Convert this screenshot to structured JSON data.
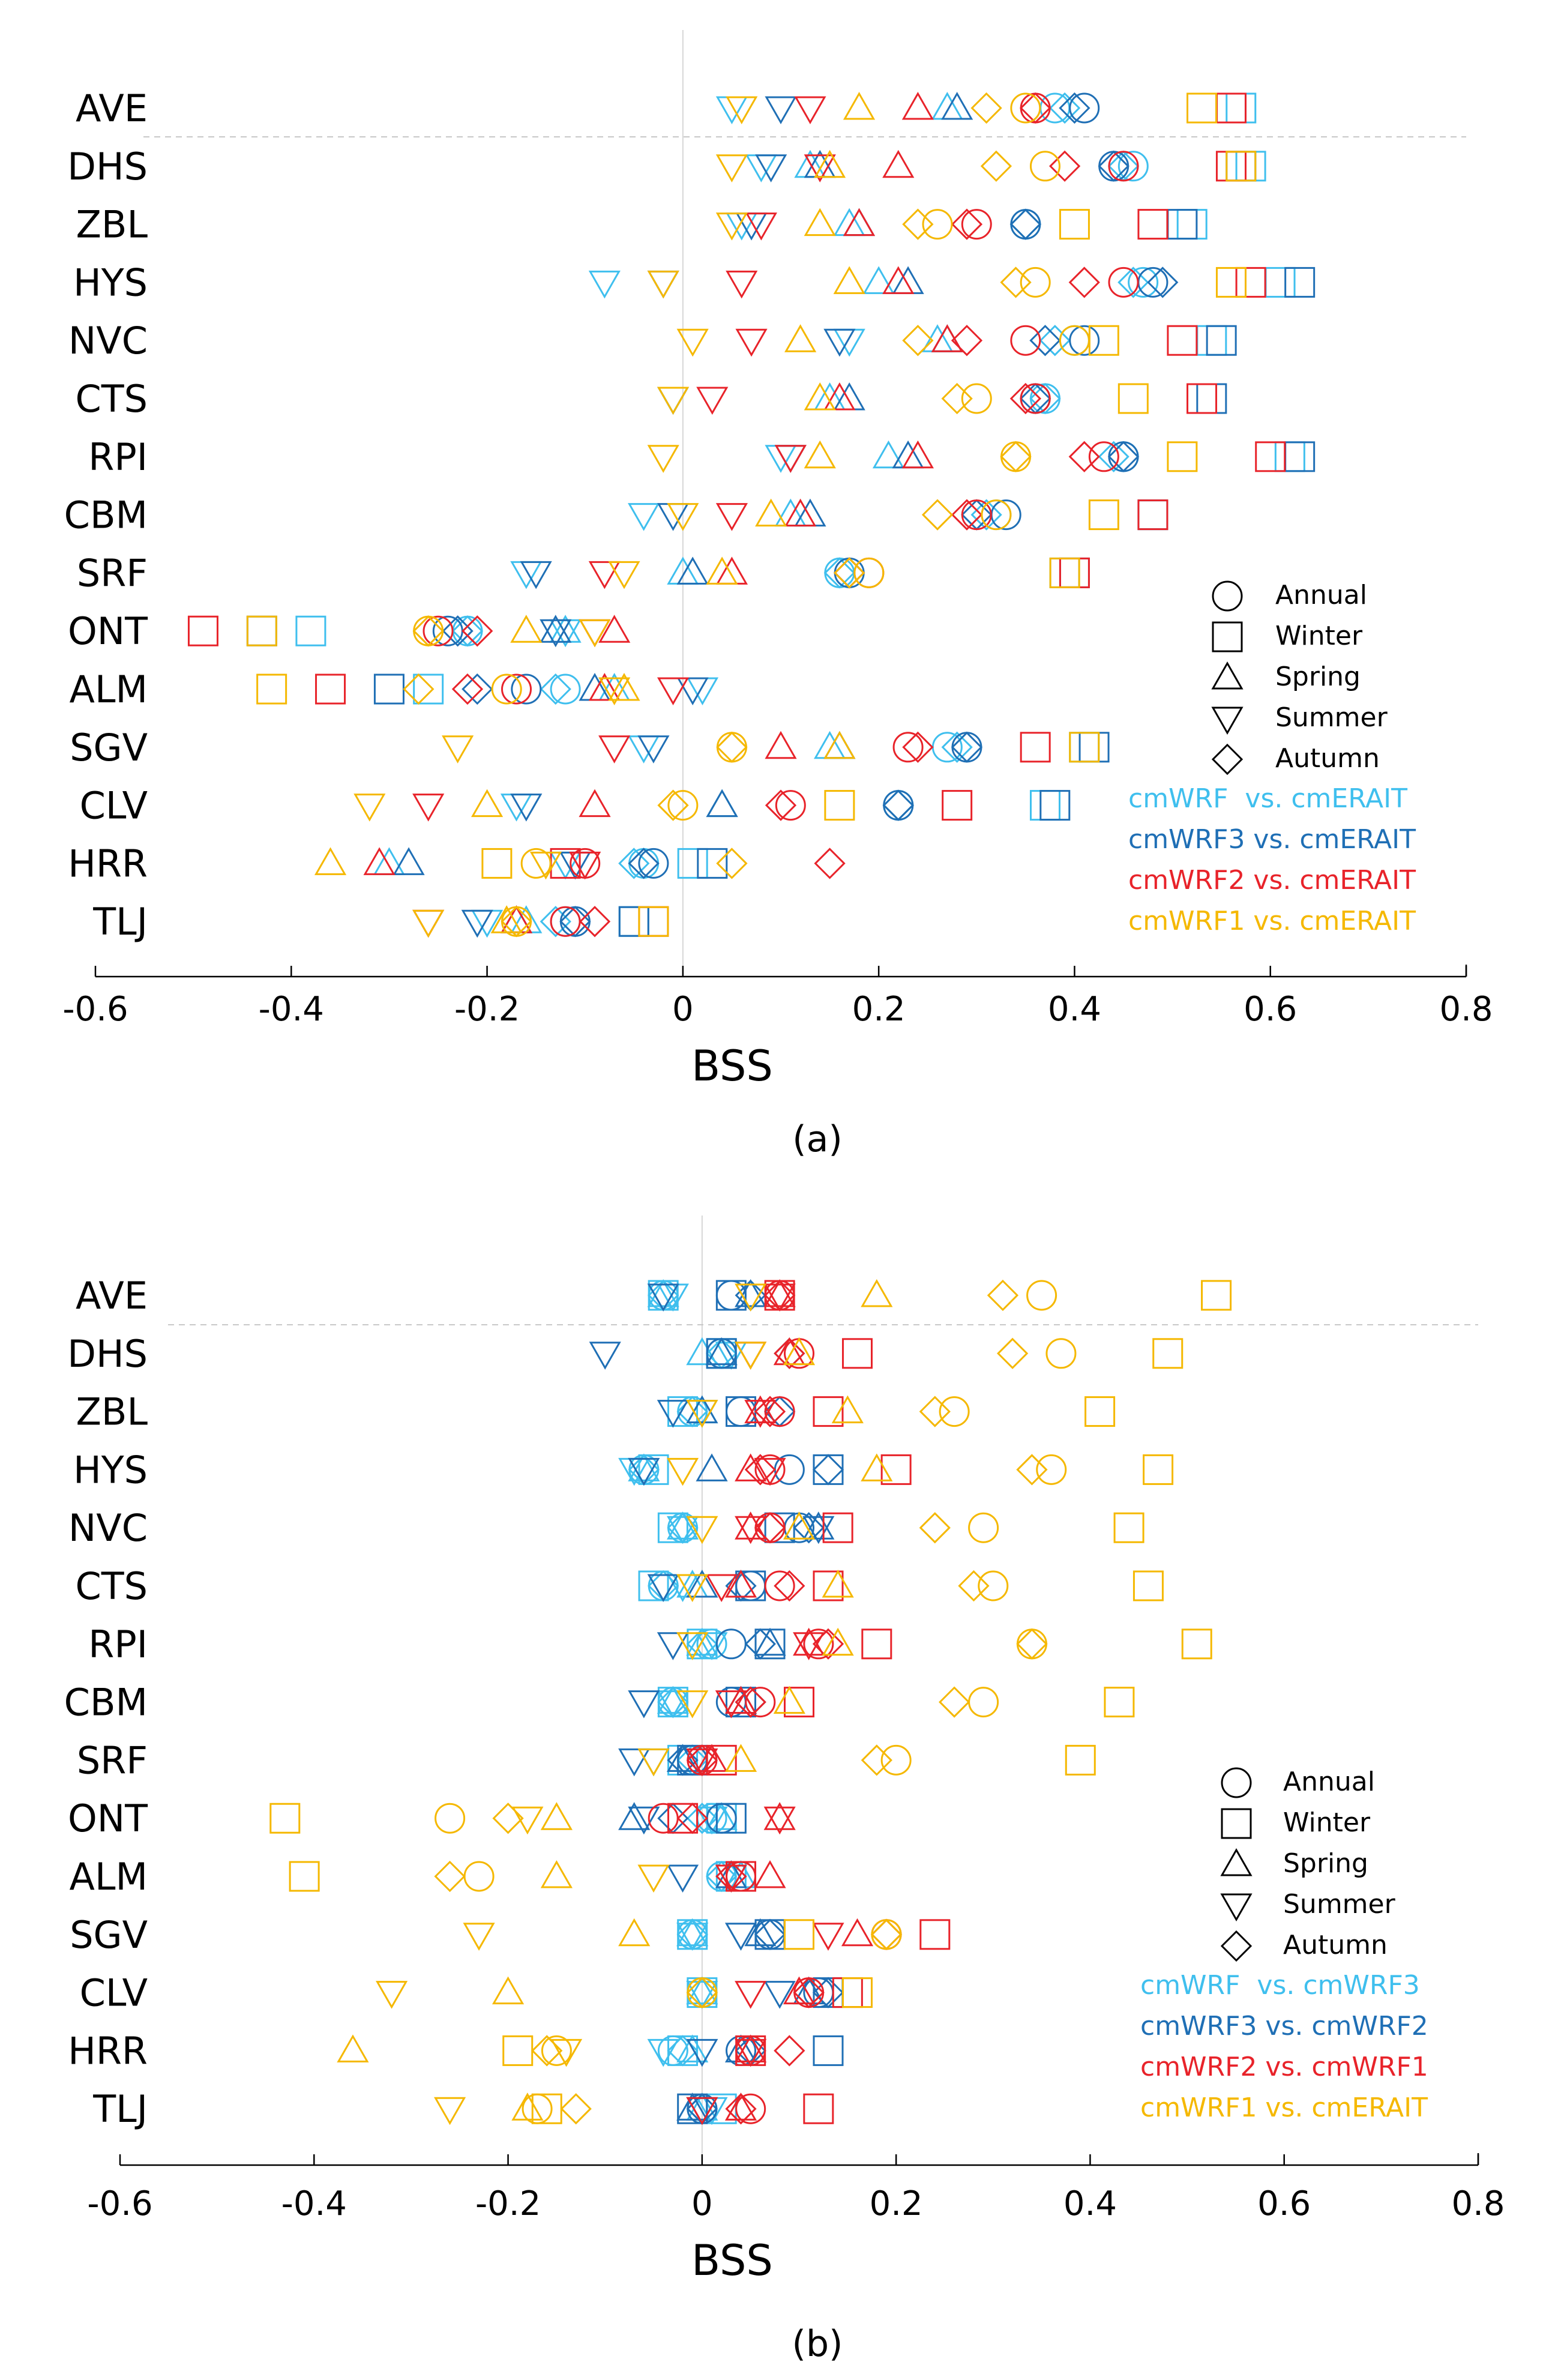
{
  "figure": {
    "panels": [
      {
        "id": "a",
        "caption": "(a)",
        "xlabel": "BSS",
        "xticks": [
          "-0.6",
          "-0.4",
          "-0.2",
          "0",
          "0.2",
          "0.4",
          "0.6",
          "0.8"
        ],
        "legend_shapes": [
          "Annual",
          "Winter",
          "Spring",
          "Summer",
          "Autumn"
        ],
        "legend_series": [
          "cmWRF  vs. cmERAIT",
          "cmWRF3 vs. cmERAIT",
          "cmWRF2 vs. cmERAIT",
          "cmWRF1 vs. cmERAIT"
        ]
      },
      {
        "id": "b",
        "caption": "(b)",
        "xlabel": "BSS",
        "xticks": [
          "-0.6",
          "-0.4",
          "-0.2",
          "0",
          "0.2",
          "0.4",
          "0.6",
          "0.8"
        ],
        "legend_shapes": [
          "Annual",
          "Winter",
          "Spring",
          "Summer",
          "Autumn"
        ],
        "legend_series": [
          "cmWRF  vs. cmWRF3",
          "cmWRF3 vs. cmWRF2",
          "cmWRF2 vs. cmWRF1",
          "cmWRF1 vs. cmERAIT"
        ]
      }
    ]
  },
  "chart_data": [
    {
      "type": "scatter",
      "title": "(a)",
      "xlabel": "BSS",
      "ylabel": "",
      "xlim": [
        -0.6,
        0.8
      ],
      "grid": false,
      "legend_position": "right",
      "categories": [
        "AVE",
        "DHS",
        "ZBL",
        "HYS",
        "NVC",
        "CTS",
        "RPI",
        "CBM",
        "SRF",
        "ONT",
        "ALM",
        "SGV",
        "CLV",
        "HRR",
        "TLJ"
      ],
      "markers": {
        "Annual": "circle",
        "Winter": "square",
        "Spring": "triangle-up",
        "Summer": "triangle-down",
        "Autumn": "diamond"
      },
      "series": [
        {
          "name": "cmWRF  vs. cmERAIT",
          "color": "#3fbfee",
          "values": {
            "Annual": [
              0.38,
              0.46,
              0.35,
              0.47,
              0.4,
              0.37,
              0.45,
              0.32,
              0.16,
              -0.22,
              -0.12,
              0.27,
              0.22,
              -0.04,
              -0.12
            ],
            "Winter": [
              0.57,
              0.58,
              0.52,
              0.61,
              0.54,
              0.53,
              0.62,
              0.48,
              0.39,
              -0.38,
              -0.26,
              0.41,
              0.37,
              0.01,
              -0.05
            ],
            "Spring": [
              0.27,
              0.13,
              0.17,
              0.2,
              0.26,
              0.15,
              0.21,
              0.11,
              0.0,
              -0.12,
              -0.07,
              0.15,
              0.04,
              -0.3,
              -0.16
            ],
            "Summer": [
              0.05,
              0.08,
              0.06,
              -0.08,
              0.17,
              -0.01,
              0.1,
              -0.04,
              -0.16,
              -0.12,
              0.02,
              -0.04,
              -0.17,
              -0.12,
              -0.2
            ],
            "Autumn": [
              0.39,
              0.45,
              0.35,
              0.46,
              0.38,
              0.37,
              0.44,
              0.31,
              0.16,
              -0.22,
              -0.13,
              0.28,
              0.22,
              -0.05,
              -0.13
            ]
          }
        },
        {
          "name": "cmWRF3 vs. cmERAIT",
          "color": "#1f6fb5",
          "values": {
            "Annual": [
              0.41,
              0.44,
              0.35,
              0.48,
              0.41,
              0.36,
              0.45,
              0.33,
              0.17,
              -0.24,
              -0.16,
              0.29,
              0.22,
              -0.03,
              -0.11
            ],
            "Winter": [
              0.56,
              0.57,
              0.51,
              0.63,
              0.55,
              0.54,
              0.63,
              0.48,
              0.4,
              -0.43,
              -0.3,
              0.42,
              0.38,
              0.03,
              -0.05
            ],
            "Spring": [
              0.28,
              0.14,
              0.18,
              0.23,
              0.27,
              0.17,
              0.23,
              0.13,
              0.01,
              -0.13,
              -0.09,
              0.16,
              0.04,
              -0.28,
              -0.17
            ],
            "Summer": [
              0.1,
              0.09,
              0.07,
              -0.02,
              0.16,
              -0.01,
              0.11,
              -0.01,
              -0.15,
              -0.13,
              0.01,
              -0.03,
              -0.16,
              -0.11,
              -0.21
            ],
            "Autumn": [
              0.4,
              0.44,
              0.35,
              0.49,
              0.37,
              0.36,
              0.45,
              0.3,
              0.17,
              -0.23,
              -0.21,
              0.29,
              0.22,
              -0.04,
              -0.11
            ]
          }
        },
        {
          "name": "cmWRF2 vs. cmERAIT",
          "color": "#e8232a",
          "values": {
            "Annual": [
              0.36,
              0.45,
              0.3,
              0.45,
              0.35,
              0.36,
              0.43,
              0.3,
              0.19,
              -0.25,
              -0.17,
              0.23,
              0.11,
              -0.1,
              -0.12
            ],
            "Winter": [
              0.56,
              0.56,
              0.48,
              0.58,
              0.51,
              0.53,
              0.6,
              0.48,
              0.4,
              -0.49,
              -0.36,
              0.36,
              0.28,
              -0.12,
              -0.03
            ],
            "Spring": [
              0.24,
              0.22,
              0.18,
              0.22,
              0.27,
              0.16,
              0.24,
              0.12,
              0.05,
              -0.07,
              -0.08,
              0.1,
              -0.09,
              -0.31,
              -0.17
            ],
            "Summer": [
              0.13,
              0.14,
              0.08,
              0.06,
              0.07,
              0.03,
              0.11,
              0.05,
              -0.08,
              -0.09,
              -0.01,
              -0.07,
              -0.26,
              -0.1,
              -0.26
            ],
            "Autumn": [
              0.36,
              0.39,
              0.29,
              0.41,
              0.29,
              0.35,
              0.41,
              0.29,
              0.17,
              -0.21,
              -0.22,
              0.24,
              0.1,
              0.15,
              -0.09
            ]
          }
        },
        {
          "name": "cmWRF1 vs. cmERAIT",
          "color": "#f5b800",
          "values": {
            "Annual": [
              0.35,
              0.37,
              0.26,
              0.36,
              0.4,
              0.3,
              0.34,
              0.32,
              0.19,
              -0.26,
              -0.18,
              0.05,
              0.0,
              -0.15,
              -0.17
            ],
            "Winter": [
              0.53,
              0.57,
              0.4,
              0.56,
              0.43,
              0.46,
              0.51,
              0.43,
              0.39,
              -0.43,
              -0.42,
              0.41,
              0.16,
              -0.19,
              -0.03
            ],
            "Spring": [
              0.18,
              0.15,
              0.14,
              0.17,
              0.12,
              0.14,
              0.14,
              0.09,
              0.04,
              -0.16,
              -0.06,
              0.16,
              -0.2,
              -0.36,
              -0.18
            ],
            "Summer": [
              0.06,
              0.05,
              0.05,
              -0.02,
              0.01,
              -0.01,
              -0.02,
              0.0,
              -0.06,
              -0.09,
              -0.07,
              -0.23,
              -0.32,
              -0.14,
              -0.26
            ],
            "Autumn": [
              0.31,
              0.32,
              0.24,
              0.34,
              0.24,
              0.28,
              0.34,
              0.26,
              0.17,
              -0.26,
              -0.27,
              0.05,
              -0.01,
              0.05,
              -0.17
            ]
          }
        }
      ]
    },
    {
      "type": "scatter",
      "title": "(b)",
      "xlabel": "BSS",
      "ylabel": "",
      "xlim": [
        -0.6,
        0.8
      ],
      "grid": false,
      "legend_position": "right",
      "categories": [
        "AVE",
        "DHS",
        "ZBL",
        "HYS",
        "NVC",
        "CTS",
        "RPI",
        "CBM",
        "SRF",
        "ONT",
        "ALM",
        "SGV",
        "CLV",
        "HRR",
        "TLJ"
      ],
      "markers": {
        "Annual": "circle",
        "Winter": "square",
        "Spring": "triangle-up",
        "Summer": "triangle-down",
        "Autumn": "diamond"
      },
      "series": [
        {
          "name": "cmWRF  vs. cmWRF3",
          "color": "#3fbfee",
          "values": {
            "Annual": [
              -0.04,
              0.02,
              -0.01,
              -0.06,
              -0.02,
              -0.04,
              0.01,
              -0.03,
              -0.01,
              0.01,
              0.02,
              -0.01,
              0.0,
              -0.03,
              0.0
            ],
            "Winter": [
              -0.04,
              0.02,
              -0.02,
              -0.05,
              -0.03,
              -0.05,
              0.0,
              -0.03,
              -0.02,
              0.02,
              0.03,
              -0.01,
              0.0,
              -0.02,
              0.02
            ],
            "Spring": [
              -0.04,
              0.0,
              0.0,
              -0.06,
              -0.02,
              -0.01,
              0.0,
              -0.03,
              -0.02,
              0.02,
              0.04,
              -0.01,
              0.0,
              -0.01,
              0.0
            ],
            "Summer": [
              -0.03,
              0.03,
              0.0,
              -0.07,
              -0.02,
              -0.02,
              0.01,
              -0.03,
              -0.05,
              0.01,
              0.03,
              -0.01,
              0.0,
              -0.04,
              0.01
            ],
            "Autumn": [
              -0.04,
              0.02,
              -0.01,
              -0.06,
              -0.02,
              -0.04,
              0.0,
              -0.03,
              -0.01,
              0.0,
              0.02,
              -0.01,
              0.0,
              -0.02,
              0.0
            ]
          }
        },
        {
          "name": "cmWRF3 vs. cmWRF2",
          "color": "#1f6fb5",
          "values": {
            "Annual": [
              0.03,
              0.02,
              0.04,
              0.09,
              0.1,
              0.05,
              0.03,
              0.03,
              -0.01,
              0.02,
              0.04,
              0.07,
              0.12,
              0.04,
              0.0
            ],
            "Winter": [
              0.03,
              0.02,
              0.04,
              0.13,
              0.08,
              0.05,
              0.07,
              0.04,
              -0.01,
              0.03,
              0.04,
              0.07,
              0.13,
              0.13,
              -0.01
            ],
            "Spring": [
              0.05,
              0.02,
              0.0,
              0.01,
              0.12,
              0.0,
              0.07,
              0.04,
              -0.02,
              -0.07,
              0.03,
              0.06,
              0.11,
              0.04,
              -0.01
            ],
            "Summer": [
              -0.04,
              -0.1,
              -0.03,
              -0.06,
              0.12,
              -0.04,
              -0.03,
              -0.06,
              -0.07,
              -0.06,
              -0.02,
              0.04,
              0.08,
              0.0,
              0.0
            ],
            "Autumn": [
              0.05,
              0.09,
              0.08,
              0.13,
              0.11,
              0.04,
              0.06,
              0.05,
              -0.02,
              -0.03,
              0.03,
              0.07,
              0.13,
              0.05,
              0.0
            ]
          }
        },
        {
          "name": "cmWRF2 vs. cmWRF1",
          "color": "#e8232a",
          "values": {
            "Annual": [
              0.08,
              0.1,
              0.08,
              0.07,
              0.07,
              0.08,
              0.12,
              0.06,
              0.0,
              -0.04,
              0.04,
              0.19,
              0.11,
              0.05,
              0.05
            ],
            "Winter": [
              0.08,
              0.16,
              0.13,
              0.2,
              0.14,
              0.13,
              0.18,
              0.1,
              0.02,
              -0.02,
              0.04,
              0.24,
              0.15,
              0.05,
              0.12
            ],
            "Spring": [
              0.08,
              0.09,
              0.06,
              0.05,
              0.05,
              0.04,
              0.11,
              0.04,
              0.01,
              0.08,
              0.07,
              0.16,
              0.1,
              0.05,
              0.04
            ],
            "Summer": [
              0.08,
              0.05,
              0.06,
              0.07,
              0.05,
              0.02,
              0.11,
              0.03,
              0.0,
              0.08,
              0.03,
              0.13,
              0.05,
              0.05,
              0.0
            ],
            "Autumn": [
              0.08,
              0.09,
              0.07,
              0.06,
              0.07,
              0.09,
              0.13,
              0.05,
              0.0,
              -0.01,
              0.03,
              0.19,
              0.11,
              0.09,
              0.04
            ]
          }
        },
        {
          "name": "cmWRF1 vs. cmERAIT",
          "color": "#f5b800",
          "values": {
            "Annual": [
              0.35,
              0.37,
              0.26,
              0.36,
              0.29,
              0.3,
              0.34,
              0.29,
              0.2,
              -0.26,
              -0.23,
              0.19,
              0.0,
              -0.15,
              -0.17
            ],
            "Winter": [
              0.53,
              0.48,
              0.41,
              0.47,
              0.44,
              0.46,
              0.51,
              0.43,
              0.39,
              -0.43,
              -0.41,
              0.1,
              0.16,
              -0.19,
              -0.16
            ],
            "Spring": [
              0.18,
              0.1,
              0.15,
              0.18,
              0.1,
              0.14,
              0.14,
              0.09,
              0.04,
              -0.15,
              -0.15,
              -0.07,
              -0.2,
              -0.36,
              -0.18
            ],
            "Summer": [
              0.05,
              0.05,
              0.0,
              -0.02,
              0.0,
              -0.01,
              -0.01,
              -0.01,
              -0.05,
              -0.18,
              -0.05,
              -0.23,
              -0.32,
              -0.14,
              -0.26
            ],
            "Autumn": [
              0.31,
              0.32,
              0.24,
              0.34,
              0.24,
              0.28,
              0.34,
              0.26,
              0.18,
              -0.2,
              -0.26,
              0.19,
              0.0,
              -0.16,
              -0.13
            ]
          }
        }
      ]
    }
  ]
}
